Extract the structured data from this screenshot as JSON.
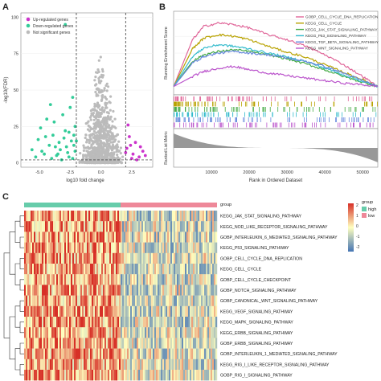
{
  "panels": {
    "a": "A",
    "b": "B",
    "c": "C"
  },
  "colors": {
    "up": "#cc33cc",
    "down": "#33cc99",
    "not_sig": "#bbbbbb",
    "high": "#66ccaa",
    "low": "#ee8899",
    "hm_high": "#d73027",
    "hm_mid": "#ffffbf",
    "hm_low": "#4575b4"
  },
  "chart_data": [
    {
      "type": "scatter",
      "xlabel": "log10 fold change",
      "ylabel": "-log10(FDR)",
      "xticks": [
        "-5.0",
        "-2.5",
        "0.0",
        "2.5"
      ],
      "yticks": [
        "0",
        "25",
        "50",
        "75",
        "100"
      ],
      "xlim": [
        -6.5,
        4.2
      ],
      "ylim": [
        -3,
        103
      ],
      "thresholds": {
        "x": [
          -2,
          2
        ],
        "y": 2
      },
      "legend": [
        "Up-regulated genes",
        "Down-regulated genes",
        "Not significant genes"
      ],
      "legend_position": "top-left",
      "series": [
        {
          "name": "Up-regulated genes",
          "color_key": "up",
          "points": [
            [
              2.1,
              10
            ],
            [
              2.3,
              18
            ],
            [
              2.6,
              6
            ],
            [
              2.8,
              14
            ],
            [
              3.1,
              4
            ],
            [
              2.2,
              26
            ],
            [
              2.5,
              3
            ],
            [
              3.4,
              8
            ],
            [
              2.4,
              12
            ],
            [
              2.9,
              2
            ],
            [
              3.6,
              5
            ],
            [
              2.0,
              7
            ],
            [
              3.2,
              11
            ]
          ]
        },
        {
          "name": "Down-regulated genes",
          "color_key": "down",
          "points": [
            [
              -2.1,
              8
            ],
            [
              -2.4,
              15
            ],
            [
              -2.9,
              22
            ],
            [
              -3.3,
              9
            ],
            [
              -3.8,
              28
            ],
            [
              -2.6,
              4
            ],
            [
              -4.2,
              12
            ],
            [
              -3.1,
              33
            ],
            [
              -2.2,
              19
            ],
            [
              -4.6,
              6
            ],
            [
              -5.1,
              16
            ],
            [
              -2.8,
              11
            ],
            [
              -3.6,
              5
            ],
            [
              -4.9,
              24
            ],
            [
              -2.3,
              3
            ],
            [
              -3.0,
              17
            ],
            [
              -2.5,
              38
            ],
            [
              -5.6,
              9
            ],
            [
              -2.1,
              25
            ],
            [
              -3.4,
              14
            ],
            [
              -4.0,
              3
            ],
            [
              -2.7,
              7
            ],
            [
              -3.9,
              19
            ],
            [
              -5.3,
              4
            ],
            [
              -4.4,
              30
            ],
            [
              -2.2,
              12
            ],
            [
              -3.2,
              2
            ],
            [
              -4.8,
              8
            ],
            [
              -2.6,
              21
            ],
            [
              -3.7,
              11
            ],
            [
              -2.9,
              95
            ],
            [
              -4.1,
              40
            ],
            [
              -2.3,
              45
            ],
            [
              -3.5,
              6
            ],
            [
              -2.0,
              15
            ],
            [
              -4.5,
              18
            ]
          ]
        }
      ],
      "cloud": {
        "name": "Not significant genes",
        "color_key": "not_sig",
        "x_range": [
          -2,
          2
        ],
        "peak": 82
      }
    },
    {
      "type": "line",
      "xlabel": "Rank in Ordered Dataset",
      "ylabel": "Running Enrichment Score",
      "ylabel2": "Ranked List Metric",
      "xticks": [
        "10000",
        "20000",
        "30000",
        "40000",
        "50000"
      ],
      "xlim": [
        0,
        54000
      ],
      "ylim": [
        -0.1,
        0.9
      ],
      "legend_position": "top-right",
      "series": [
        {
          "name": "GOBP_CELL_CYCLE_DNA_REPLICATION",
          "color": "#e06699",
          "x": [
            0,
            5000,
            8000,
            12000,
            16000,
            20000,
            25000,
            30000,
            35000,
            40000,
            45000,
            50000,
            54000
          ],
          "y": [
            0,
            0.56,
            0.72,
            0.76,
            0.74,
            0.7,
            0.62,
            0.56,
            0.48,
            0.38,
            0.26,
            0.12,
            0
          ]
        },
        {
          "name": "KEGG_CELL_CYCLE",
          "color": "#b8a200",
          "x": [
            0,
            5000,
            8000,
            12000,
            16000,
            20000,
            25000,
            30000,
            35000,
            40000,
            45000,
            50000,
            54000
          ],
          "y": [
            0,
            0.45,
            0.58,
            0.62,
            0.6,
            0.56,
            0.48,
            0.41,
            0.35,
            0.26,
            0.17,
            0.08,
            0
          ]
        },
        {
          "name": "KEGG_JAK_STAT_SIGNALING_PATHWAY",
          "color": "#44aa44",
          "x": [
            0,
            5000,
            8000,
            12000,
            16000,
            20000,
            25000,
            30000,
            35000,
            40000,
            45000,
            50000,
            54000
          ],
          "y": [
            0,
            0.3,
            0.38,
            0.42,
            0.44,
            0.42,
            0.38,
            0.33,
            0.27,
            0.2,
            0.12,
            0.05,
            0
          ]
        },
        {
          "name": "KEGG_P53_SIGNALING_PATHWAY",
          "color": "#33bbcc",
          "x": [
            0,
            5000,
            8000,
            12000,
            16000,
            20000,
            25000,
            30000,
            35000,
            40000,
            45000,
            50000,
            54000
          ],
          "y": [
            0,
            0.36,
            0.46,
            0.5,
            0.48,
            0.45,
            0.4,
            0.35,
            0.3,
            0.22,
            0.14,
            0.06,
            0
          ]
        },
        {
          "name": "KEGG_TGF_BETA_SIGNALING_PATHWAY",
          "color": "#6688dd",
          "x": [
            0,
            5000,
            8000,
            12000,
            16000,
            20000,
            25000,
            30000,
            35000,
            40000,
            45000,
            50000,
            54000
          ],
          "y": [
            0,
            0.28,
            0.36,
            0.4,
            0.42,
            0.4,
            0.38,
            0.34,
            0.3,
            0.24,
            0.16,
            0.07,
            0
          ]
        },
        {
          "name": "KEGG_WNT_SIGNALING_PATHWAY",
          "color": "#bb55cc",
          "x": [
            0,
            5000,
            8000,
            12000,
            16000,
            20000,
            25000,
            30000,
            35000,
            40000,
            45000,
            50000,
            54000
          ],
          "y": [
            0,
            0.12,
            0.18,
            0.22,
            0.24,
            0.2,
            0.16,
            0.13,
            0.1,
            0.07,
            0.04,
            0.02,
            0
          ]
        }
      ]
    },
    {
      "type": "heatmap",
      "groups_title": "group",
      "groups": [
        {
          "name": "high",
          "fraction": 0.5
        },
        {
          "name": "low",
          "fraction": 0.5
        }
      ],
      "rows": [
        "KEGG_JAK_STAT_SIGNALING_PATHWAY",
        "KEGG_NOD_LIKE_RECEPTOR_SIGNALING_PATHWAY",
        "GOBP_INTERLEUKIN_6_MEDIATED_SIGNALING_PATHWAY",
        "KEGG_P53_SIGNALING_PATHWAY",
        "GOBP_CELL_CYCLE_DNA_REPLICATION",
        "KEGG_CELL_CYCLE",
        "GOBP_CELL_CYCLE_CHECKPOINT",
        "GOBP_NOTCH_SIGNALING_PATHWAY",
        "GOBP_CANONICAL_WNT_SIGNALING_PATHWAY",
        "KEGG_VEGF_SIGNALING_PATHWAY",
        "KEGG_MAPK_SIGNALING_PATHWAY",
        "KEGG_ERBB_SIGNALING_PATHWAY",
        "GOBP_ERBB_SIGNALING_PATHWAY",
        "GOBP_INTERLEUKIN_1_MEDIATED_SIGNALING_PATHWAY",
        "KEGG_RIG_I_LIKE_RECEPTOR_SIGNALING_PATHWAY",
        "GOBP_RIG_I_SIGNALING_PATHWAY"
      ],
      "color_scale_ticks": [
        "2",
        "1",
        "0",
        "-1",
        "-2"
      ],
      "color_range": [
        -2,
        2
      ]
    }
  ]
}
